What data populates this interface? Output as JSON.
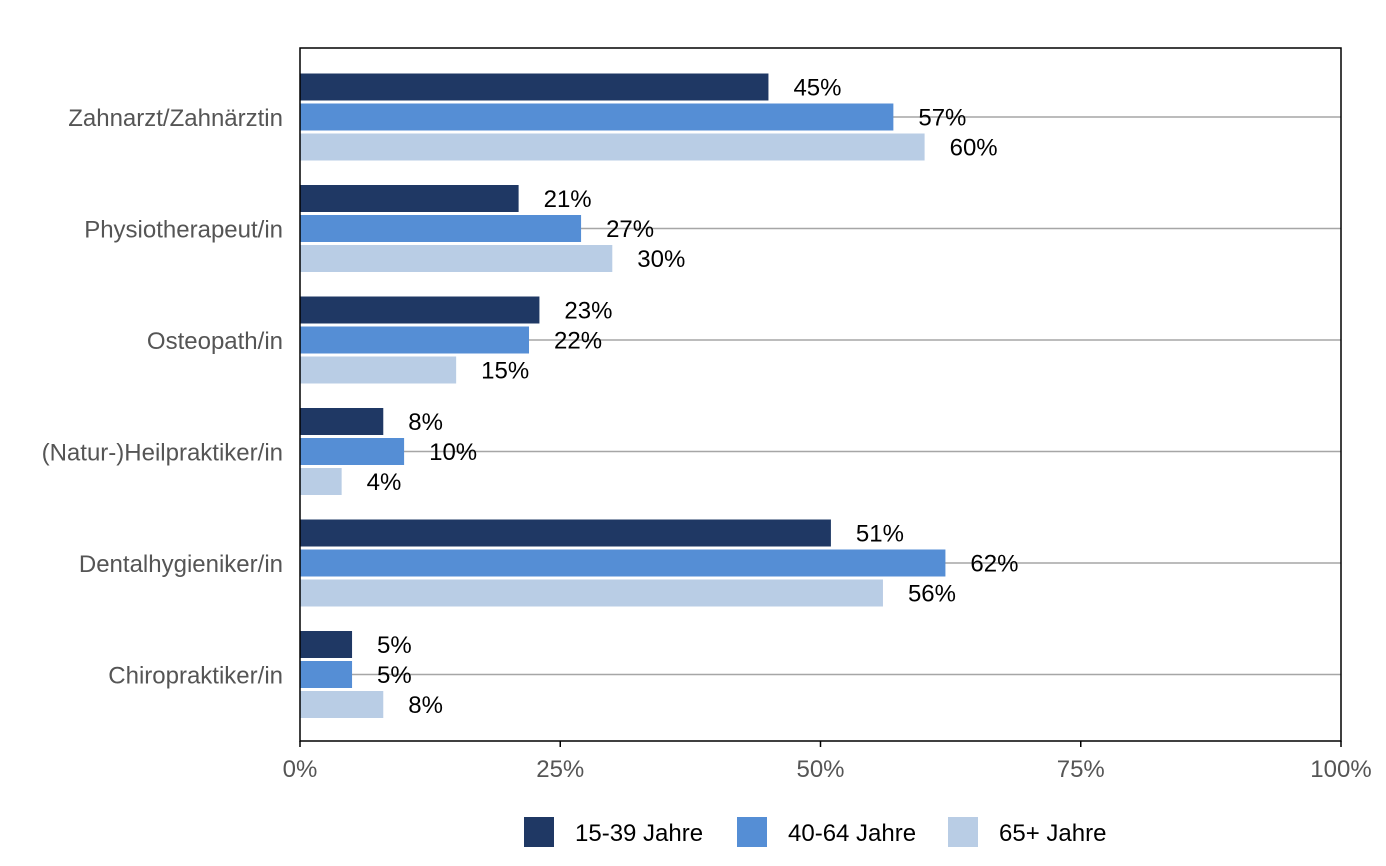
{
  "chart_data": {
    "type": "bar",
    "orientation": "horizontal",
    "title": "",
    "xlabel": "",
    "ylabel": "",
    "xlim": [
      0,
      100
    ],
    "x_ticks": [
      0,
      25,
      50,
      75,
      100
    ],
    "x_tick_labels": [
      "0%",
      "25%",
      "50%",
      "75%",
      "100%"
    ],
    "categories": [
      "Zahnarzt/Zahnärztin",
      "Physiotherapeut/in",
      "Osteopath/in",
      "(Natur-)Heilpraktiker/in",
      "Dentalhygieniker/in",
      "Chiropraktiker/in"
    ],
    "series": [
      {
        "name": "15-39 Jahre",
        "color": "#1f3864",
        "values": [
          45,
          21,
          23,
          8,
          51,
          5
        ],
        "labels": [
          "45%",
          "21%",
          "23%",
          "8%",
          "51%",
          "5%"
        ]
      },
      {
        "name": "40-64 Jahre",
        "color": "#558ed5",
        "values": [
          57,
          27,
          22,
          10,
          62,
          5
        ],
        "labels": [
          "57%",
          "27%",
          "22%",
          "10%",
          "62%",
          "5%"
        ]
      },
      {
        "name": "65+ Jahre",
        "color": "#b9cde5",
        "values": [
          60,
          30,
          15,
          4,
          56,
          8
        ],
        "labels": [
          "60%",
          "30%",
          "15%",
          "4%",
          "56%",
          "8%"
        ]
      }
    ],
    "legend_position": "bottom",
    "grid": "horizontal"
  }
}
